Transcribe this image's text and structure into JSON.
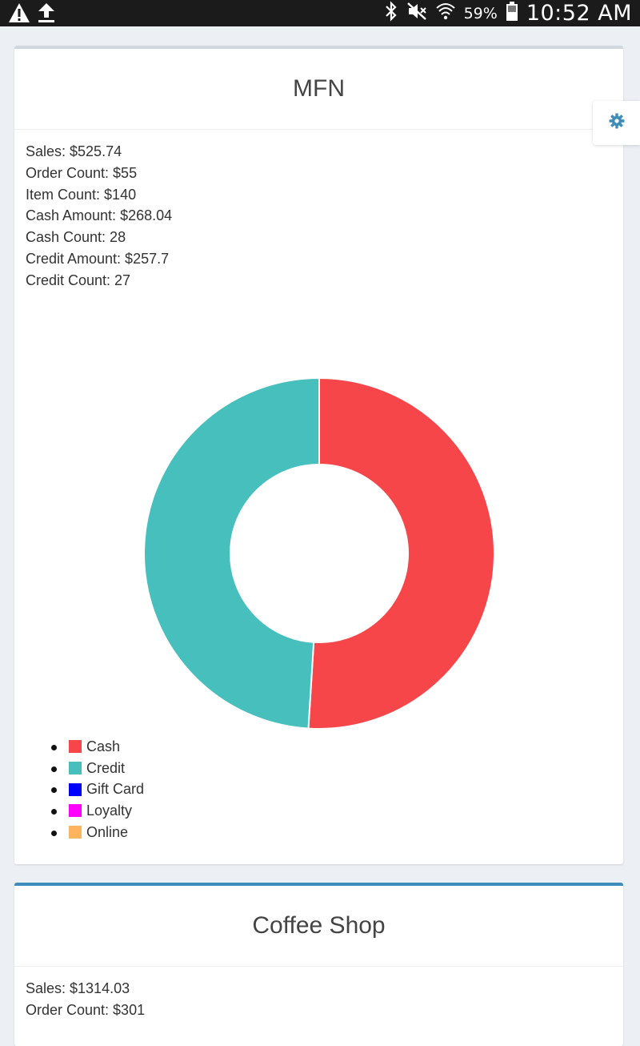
{
  "status_bar": {
    "battery_percent": "59%",
    "time": "10:52 AM",
    "icons": [
      "warning-icon",
      "upload-icon",
      "bluetooth-icon",
      "mute-icon",
      "wifi-icon",
      "battery-icon"
    ]
  },
  "settings": {
    "icon": "gear-icon",
    "color": "#3c8dbc"
  },
  "cards": [
    {
      "title": "MFN",
      "border_color": "#d2d6de",
      "stats": [
        "Sales: $525.74",
        "Order Count: $55",
        "Item Count: $140",
        "Cash Amount: $268.04",
        "Cash Count: 28",
        "Credit Amount: $257.7",
        "Credit Count: 27"
      ],
      "legend": [
        {
          "label": "Cash",
          "color": "#f7464a"
        },
        {
          "label": "Credit",
          "color": "#46bfbd"
        },
        {
          "label": "Gift Card",
          "color": "#0000ff"
        },
        {
          "label": "Loyalty",
          "color": "#ff00ff"
        },
        {
          "label": "Online",
          "color": "#fdb45c"
        }
      ]
    },
    {
      "title": "Coffee Shop",
      "border_color": "#3c8dbc",
      "stats": [
        "Sales: $1314.03",
        "Order Count: $301"
      ]
    }
  ],
  "chart_data": {
    "type": "pie",
    "categories": [
      "Cash",
      "Credit",
      "Gift Card",
      "Loyalty",
      "Online"
    ],
    "values": [
      268.04,
      257.7,
      0,
      0,
      0
    ],
    "colors": [
      "#f7464a",
      "#46bfbd",
      "#0000ff",
      "#ff00ff",
      "#fdb45c"
    ],
    "donut": true,
    "legend_position": "bottom-left"
  }
}
